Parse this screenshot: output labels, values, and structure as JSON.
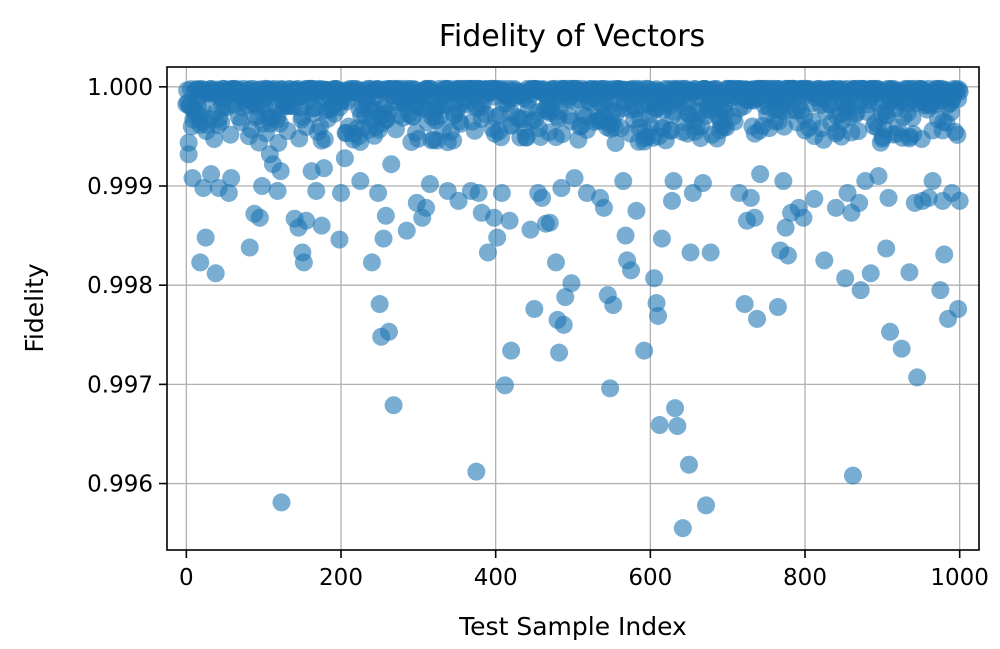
{
  "chart_data": {
    "type": "scatter",
    "title": "Fidelity of Vectors",
    "xlabel": "Test Sample Index",
    "ylabel": "Fidelity",
    "xlim": [
      -25,
      1025
    ],
    "ylim": [
      0.99533,
      1.0002
    ],
    "xticks": [
      0,
      200,
      400,
      600,
      800,
      1000
    ],
    "xtick_labels": [
      "0",
      "200",
      "400",
      "600",
      "800",
      "1000"
    ],
    "yticks": [
      0.996,
      0.997,
      0.998,
      0.999,
      1.0
    ],
    "ytick_labels": [
      "0.996",
      "0.997",
      "0.998",
      "0.999",
      "1.000"
    ],
    "grid": true,
    "marker_color": "#1f77b4",
    "marker_alpha": 0.6,
    "outliers": [
      {
        "x": 3,
        "y": 0.99932
      },
      {
        "x": 8,
        "y": 0.99908
      },
      {
        "x": 15,
        "y": 0.9998
      },
      {
        "x": 18,
        "y": 0.99823
      },
      {
        "x": 22,
        "y": 0.99898
      },
      {
        "x": 25,
        "y": 0.99848
      },
      {
        "x": 32,
        "y": 0.99912
      },
      {
        "x": 38,
        "y": 0.99812
      },
      {
        "x": 42,
        "y": 0.99898
      },
      {
        "x": 55,
        "y": 0.99893
      },
      {
        "x": 58,
        "y": 0.99908
      },
      {
        "x": 82,
        "y": 0.99838
      },
      {
        "x": 88,
        "y": 0.99872
      },
      {
        "x": 95,
        "y": 0.99868
      },
      {
        "x": 98,
        "y": 0.999
      },
      {
        "x": 108,
        "y": 0.99932
      },
      {
        "x": 112,
        "y": 0.99922
      },
      {
        "x": 118,
        "y": 0.99895
      },
      {
        "x": 122,
        "y": 0.99915
      },
      {
        "x": 123,
        "y": 0.99581
      },
      {
        "x": 140,
        "y": 0.99867
      },
      {
        "x": 145,
        "y": 0.99858
      },
      {
        "x": 150,
        "y": 0.99833
      },
      {
        "x": 152,
        "y": 0.99823
      },
      {
        "x": 155,
        "y": 0.99865
      },
      {
        "x": 162,
        "y": 0.99915
      },
      {
        "x": 168,
        "y": 0.99895
      },
      {
        "x": 175,
        "y": 0.9986
      },
      {
        "x": 178,
        "y": 0.99918
      },
      {
        "x": 198,
        "y": 0.99846
      },
      {
        "x": 200,
        "y": 0.99893
      },
      {
        "x": 205,
        "y": 0.99928
      },
      {
        "x": 225,
        "y": 0.99905
      },
      {
        "x": 240,
        "y": 0.99823
      },
      {
        "x": 248,
        "y": 0.99893
      },
      {
        "x": 250,
        "y": 0.99781
      },
      {
        "x": 252,
        "y": 0.99748
      },
      {
        "x": 255,
        "y": 0.99847
      },
      {
        "x": 258,
        "y": 0.9987
      },
      {
        "x": 262,
        "y": 0.99753
      },
      {
        "x": 265,
        "y": 0.99922
      },
      {
        "x": 268,
        "y": 0.99679
      },
      {
        "x": 285,
        "y": 0.99855
      },
      {
        "x": 298,
        "y": 0.99883
      },
      {
        "x": 305,
        "y": 0.99868
      },
      {
        "x": 310,
        "y": 0.99878
      },
      {
        "x": 315,
        "y": 0.99902
      },
      {
        "x": 338,
        "y": 0.99895
      },
      {
        "x": 352,
        "y": 0.99885
      },
      {
        "x": 368,
        "y": 0.99895
      },
      {
        "x": 375,
        "y": 0.99612
      },
      {
        "x": 378,
        "y": 0.99893
      },
      {
        "x": 382,
        "y": 0.99873
      },
      {
        "x": 390,
        "y": 0.99833
      },
      {
        "x": 398,
        "y": 0.99868
      },
      {
        "x": 402,
        "y": 0.99848
      },
      {
        "x": 408,
        "y": 0.99893
      },
      {
        "x": 412,
        "y": 0.99699
      },
      {
        "x": 418,
        "y": 0.99865
      },
      {
        "x": 420,
        "y": 0.99734
      },
      {
        "x": 445,
        "y": 0.99856
      },
      {
        "x": 450,
        "y": 0.99776
      },
      {
        "x": 455,
        "y": 0.99893
      },
      {
        "x": 460,
        "y": 0.99888
      },
      {
        "x": 465,
        "y": 0.99862
      },
      {
        "x": 470,
        "y": 0.99863
      },
      {
        "x": 478,
        "y": 0.99823
      },
      {
        "x": 480,
        "y": 0.99765
      },
      {
        "x": 482,
        "y": 0.99732
      },
      {
        "x": 485,
        "y": 0.99898
      },
      {
        "x": 488,
        "y": 0.9976
      },
      {
        "x": 490,
        "y": 0.99788
      },
      {
        "x": 498,
        "y": 0.99802
      },
      {
        "x": 502,
        "y": 0.99908
      },
      {
        "x": 518,
        "y": 0.99893
      },
      {
        "x": 535,
        "y": 0.99888
      },
      {
        "x": 540,
        "y": 0.99878
      },
      {
        "x": 545,
        "y": 0.9979
      },
      {
        "x": 548,
        "y": 0.99696
      },
      {
        "x": 552,
        "y": 0.9978
      },
      {
        "x": 565,
        "y": 0.99905
      },
      {
        "x": 568,
        "y": 0.9985
      },
      {
        "x": 570,
        "y": 0.99825
      },
      {
        "x": 575,
        "y": 0.99815
      },
      {
        "x": 582,
        "y": 0.99875
      },
      {
        "x": 592,
        "y": 0.99734
      },
      {
        "x": 605,
        "y": 0.99807
      },
      {
        "x": 608,
        "y": 0.99782
      },
      {
        "x": 610,
        "y": 0.99769
      },
      {
        "x": 612,
        "y": 0.99659
      },
      {
        "x": 615,
        "y": 0.99847
      },
      {
        "x": 628,
        "y": 0.99885
      },
      {
        "x": 630,
        "y": 0.99905
      },
      {
        "x": 632,
        "y": 0.99676
      },
      {
        "x": 635,
        "y": 0.99658
      },
      {
        "x": 642,
        "y": 0.99555
      },
      {
        "x": 650,
        "y": 0.99619
      },
      {
        "x": 652,
        "y": 0.99833
      },
      {
        "x": 655,
        "y": 0.99893
      },
      {
        "x": 668,
        "y": 0.99903
      },
      {
        "x": 672,
        "y": 0.99578
      },
      {
        "x": 678,
        "y": 0.99833
      },
      {
        "x": 715,
        "y": 0.99893
      },
      {
        "x": 722,
        "y": 0.99781
      },
      {
        "x": 725,
        "y": 0.99865
      },
      {
        "x": 730,
        "y": 0.99888
      },
      {
        "x": 735,
        "y": 0.99868
      },
      {
        "x": 738,
        "y": 0.99766
      },
      {
        "x": 742,
        "y": 0.99912
      },
      {
        "x": 765,
        "y": 0.99778
      },
      {
        "x": 768,
        "y": 0.99835
      },
      {
        "x": 772,
        "y": 0.99905
      },
      {
        "x": 775,
        "y": 0.99858
      },
      {
        "x": 778,
        "y": 0.9983
      },
      {
        "x": 782,
        "y": 0.99873
      },
      {
        "x": 792,
        "y": 0.99878
      },
      {
        "x": 798,
        "y": 0.99868
      },
      {
        "x": 812,
        "y": 0.99887
      },
      {
        "x": 825,
        "y": 0.99825
      },
      {
        "x": 840,
        "y": 0.99878
      },
      {
        "x": 852,
        "y": 0.99807
      },
      {
        "x": 855,
        "y": 0.99893
      },
      {
        "x": 860,
        "y": 0.99873
      },
      {
        "x": 862,
        "y": 0.99608
      },
      {
        "x": 870,
        "y": 0.99883
      },
      {
        "x": 872,
        "y": 0.99795
      },
      {
        "x": 878,
        "y": 0.99905
      },
      {
        "x": 885,
        "y": 0.99812
      },
      {
        "x": 895,
        "y": 0.9991
      },
      {
        "x": 905,
        "y": 0.99837
      },
      {
        "x": 908,
        "y": 0.99888
      },
      {
        "x": 910,
        "y": 0.99753
      },
      {
        "x": 925,
        "y": 0.99736
      },
      {
        "x": 935,
        "y": 0.99813
      },
      {
        "x": 942,
        "y": 0.99883
      },
      {
        "x": 945,
        "y": 0.99707
      },
      {
        "x": 952,
        "y": 0.99885
      },
      {
        "x": 960,
        "y": 0.99888
      },
      {
        "x": 965,
        "y": 0.99905
      },
      {
        "x": 975,
        "y": 0.99795
      },
      {
        "x": 978,
        "y": 0.99885
      },
      {
        "x": 980,
        "y": 0.99831
      },
      {
        "x": 985,
        "y": 0.99766
      },
      {
        "x": 990,
        "y": 0.99893
      },
      {
        "x": 998,
        "y": 0.99776
      },
      {
        "x": 1000,
        "y": 0.99885
      }
    ]
  }
}
